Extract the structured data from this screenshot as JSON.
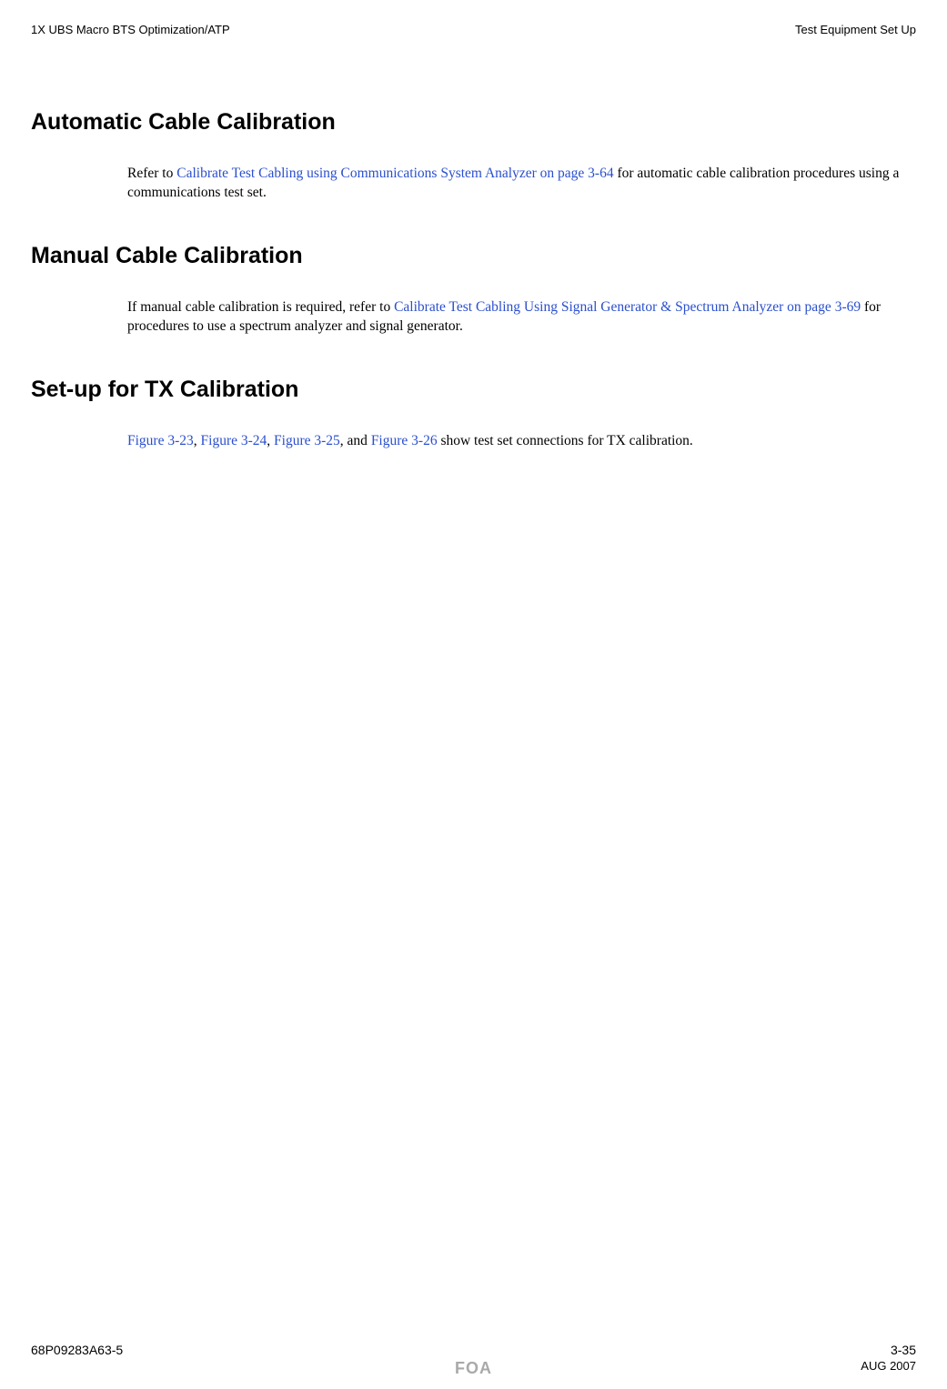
{
  "header": {
    "left": "1X UBS Macro BTS Optimization/ATP",
    "right": "Test Equipment Set Up"
  },
  "sections": {
    "auto_cal": {
      "title": "Automatic Cable Calibration",
      "para_pre": "Refer to ",
      "link": "Calibrate Test Cabling using Communications System Analyzer on page 3-64",
      "para_post": " for automatic cable calibration procedures using a communications test set."
    },
    "manual_cal": {
      "title": "Manual Cable Calibration",
      "para_pre": "If manual cable calibration is required, refer to ",
      "link": "Calibrate Test Cabling Using Signal Generator & Spectrum Analyzer on page 3-69",
      "para_post": " for procedures to use a spectrum analyzer and signal generator."
    },
    "tx_cal": {
      "title": "Set-up for TX Calibration",
      "fig1": "Figure 3-23",
      "sep1": ", ",
      "fig2": "Figure 3-24",
      "sep2": ", ",
      "fig3": "Figure 3-25",
      "sep3": ", and ",
      "fig4": "Figure 3-26",
      "post": " show test set connections for TX calibration."
    }
  },
  "footer": {
    "docnum": "68P09283A63-5",
    "pagenum": "3-35",
    "foa": "FOA",
    "date": "AUG 2007"
  }
}
